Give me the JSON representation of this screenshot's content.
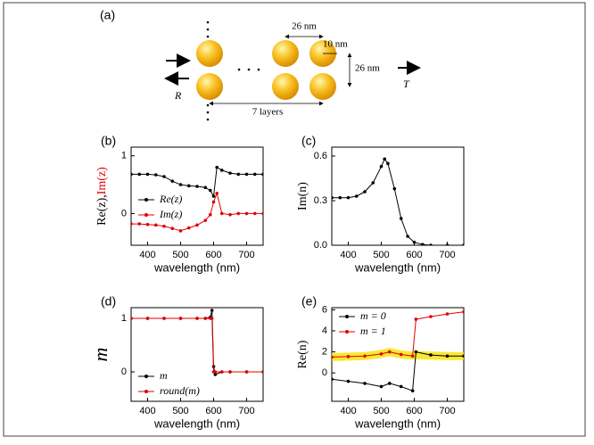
{
  "diagram": {
    "label": "(a)",
    "top_size": "26 nm",
    "radius": "10 nm",
    "side_size": "26 nm",
    "layers": "7 layers",
    "reflect": "R",
    "transmit": "T"
  },
  "chart_data": [
    {
      "type": "line",
      "label": "(b)",
      "xlabel": "wavelength (nm)",
      "ylabel": [
        {
          "text": "Re(z)",
          "color": "#000000"
        },
        {
          "text": ",",
          "color": "#000000"
        },
        {
          "text": "Im(z)",
          "color": "#e00000"
        }
      ],
      "xlim": [
        350,
        750
      ],
      "xticks": [
        400,
        500,
        600,
        700
      ],
      "ylim": [
        -0.55,
        1.15
      ],
      "yticks": [
        0,
        1
      ],
      "legend": "center left",
      "x": [
        350,
        375,
        400,
        425,
        450,
        475,
        500,
        525,
        550,
        575,
        590,
        600,
        610,
        625,
        650,
        675,
        700,
        725,
        750
      ],
      "series": [
        {
          "name": "Re(z)",
          "color": "#000000",
          "values": [
            0.68,
            0.68,
            0.68,
            0.67,
            0.64,
            0.56,
            0.5,
            0.48,
            0.47,
            0.45,
            0.4,
            0.3,
            0.8,
            0.75,
            0.7,
            0.68,
            0.68,
            0.68,
            0.68
          ]
        },
        {
          "name": "Im(z)",
          "color": "#e00000",
          "values": [
            -0.18,
            -0.18,
            -0.19,
            -0.2,
            -0.22,
            -0.26,
            -0.3,
            -0.25,
            -0.2,
            -0.12,
            -0.02,
            0.2,
            0.35,
            0.0,
            -0.02,
            0,
            0,
            0,
            0
          ]
        }
      ]
    },
    {
      "type": "line",
      "label": "(c)",
      "xlabel": "wavelength (nm)",
      "ylabel": [
        {
          "text": "Im(n)",
          "color": "#000000"
        }
      ],
      "xlim": [
        350,
        750
      ],
      "xticks": [
        400,
        500,
        600,
        700
      ],
      "ylim": [
        0,
        0.66
      ],
      "yticks": [
        {
          "value": 0,
          "label": "0.0"
        },
        0.3,
        0.6
      ],
      "x": [
        350,
        375,
        400,
        425,
        450,
        475,
        500,
        510,
        520,
        540,
        560,
        580,
        600,
        625,
        650,
        700,
        750
      ],
      "series": [
        {
          "color": "#000000",
          "values": [
            0.32,
            0.32,
            0.32,
            0.33,
            0.36,
            0.42,
            0.53,
            0.58,
            0.55,
            0.38,
            0.18,
            0.06,
            0.02,
            0.005,
            0,
            0,
            0
          ]
        }
      ]
    },
    {
      "type": "line",
      "label": "(d)",
      "xlabel": "wavelength (nm)",
      "ylabel": [
        {
          "text": "m",
          "color": "#000000"
        }
      ],
      "xlim": [
        350,
        750
      ],
      "xticks": [
        400,
        500,
        600,
        700
      ],
      "ylim": [
        -0.55,
        1.2
      ],
      "yticks": [
        0,
        1
      ],
      "legend": "lower left",
      "x": [
        350,
        400,
        450,
        500,
        550,
        575,
        590,
        595,
        600,
        605,
        625,
        650,
        700,
        750
      ],
      "series": [
        {
          "name": "m",
          "color": "#000000",
          "values": [
            1,
            1,
            1,
            1,
            1,
            1,
            1.02,
            1.15,
            0.1,
            -0.05,
            0,
            0,
            0,
            0
          ]
        },
        {
          "name": "round(m)",
          "color": "#e00000",
          "values": [
            1,
            1,
            1,
            1,
            1,
            1,
            1,
            1,
            0,
            0,
            0,
            0,
            0,
            0
          ]
        }
      ]
    },
    {
      "type": "line",
      "label": "(e)",
      "xlabel": "wavelength (nm)",
      "ylabel": [
        {
          "text": "Re(n)",
          "color": "#000000"
        }
      ],
      "xlim": [
        350,
        750
      ],
      "xticks": [
        400,
        500,
        600,
        700
      ],
      "ylim": [
        -2.7,
        6.2
      ],
      "yticks": [
        0,
        2,
        4,
        6
      ],
      "legend": "upper left",
      "x": [
        350,
        400,
        450,
        500,
        525,
        560,
        595,
        605,
        650,
        700,
        750
      ],
      "series": [
        {
          "color": "#f5e400",
          "linewidth": 9,
          "values": [
            1.5,
            1.55,
            1.6,
            1.8,
            2.0,
            1.75,
            1.65,
            1.7,
            1.65,
            1.6,
            1.6
          ]
        },
        {
          "name": "m = 0",
          "color": "#000000",
          "values": [
            -0.6,
            -0.8,
            -1.0,
            -1.3,
            -1.0,
            -1.3,
            -1.7,
            2.0,
            1.7,
            1.6,
            1.6
          ]
        },
        {
          "name": "m = 1",
          "color": "#e00000",
          "values": [
            1.5,
            1.55,
            1.6,
            1.8,
            2.0,
            1.75,
            1.6,
            5.1,
            5.35,
            5.6,
            5.8
          ]
        }
      ]
    }
  ]
}
